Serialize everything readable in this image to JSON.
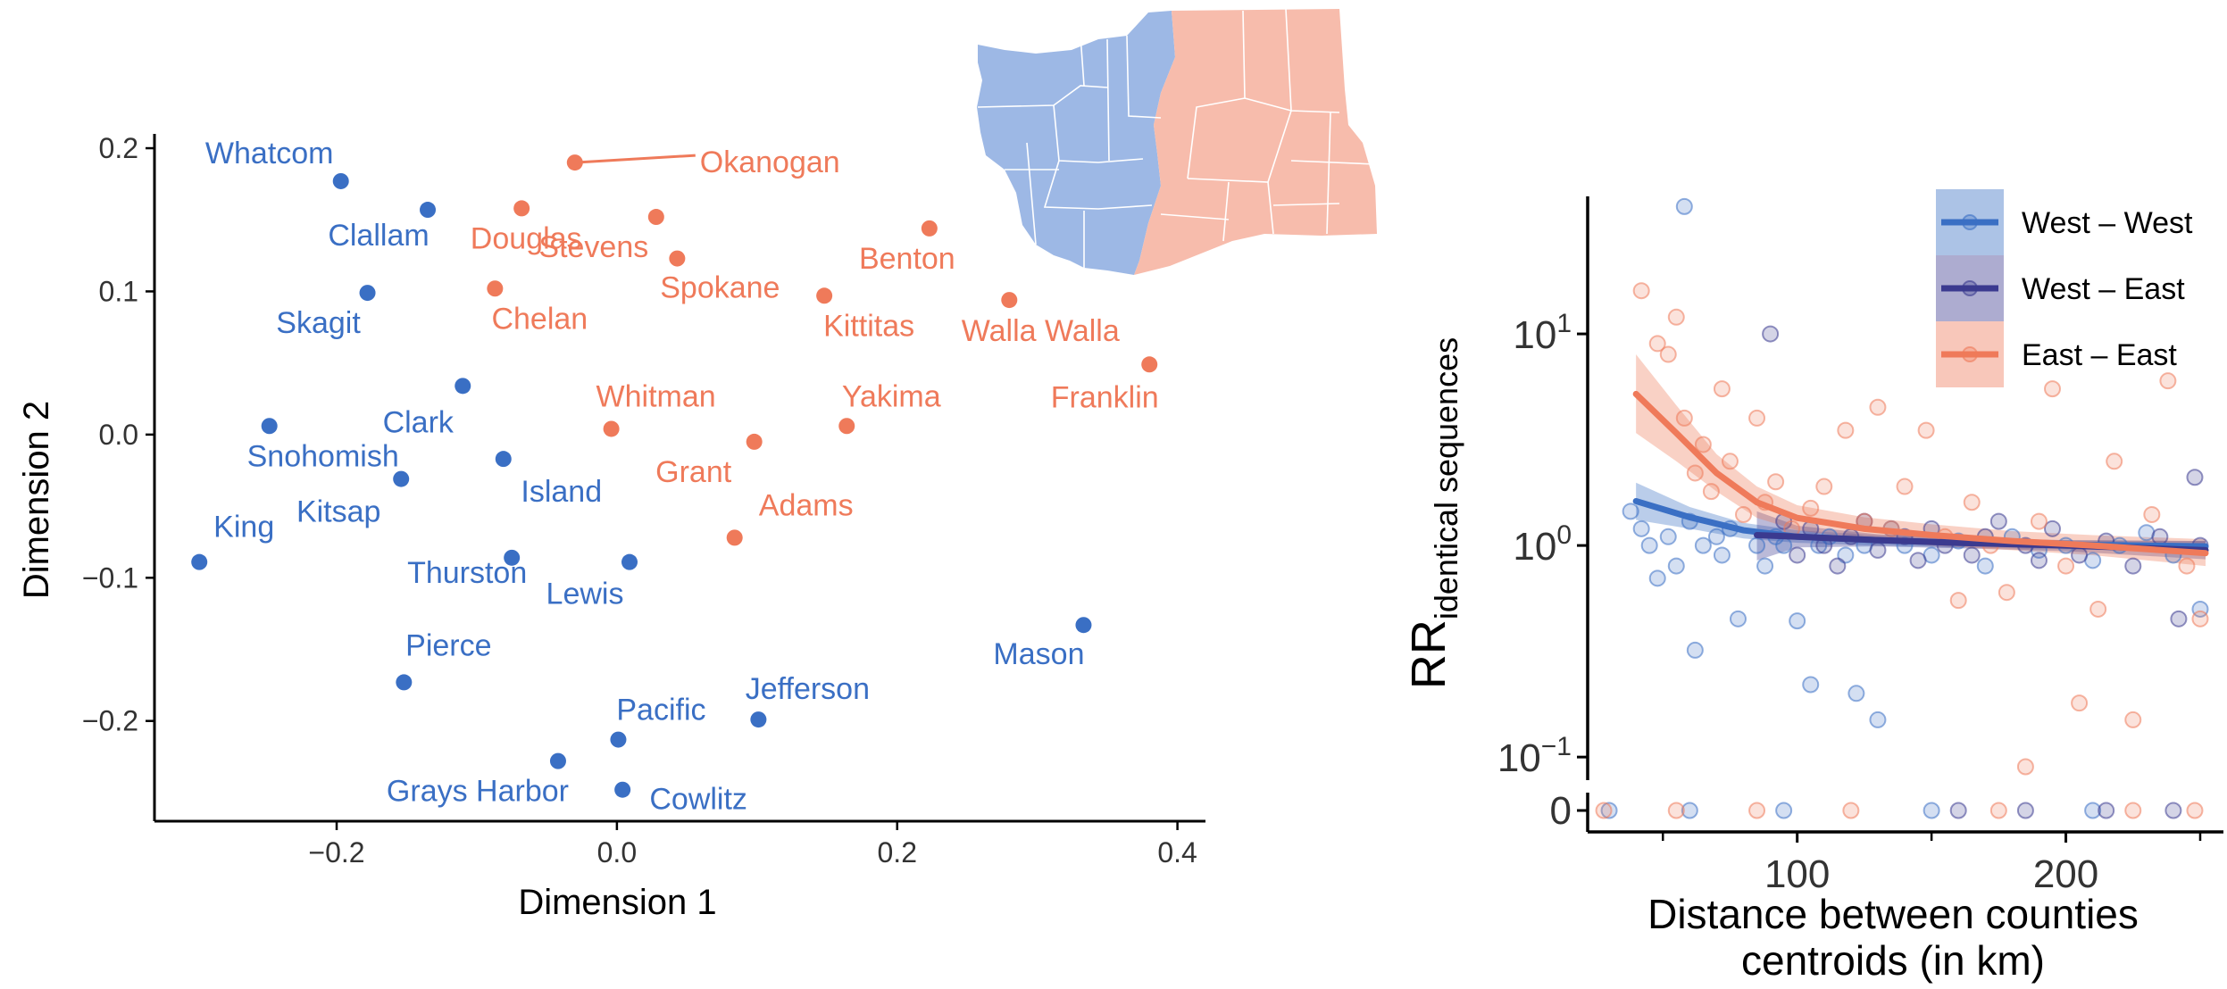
{
  "colors": {
    "west": "#3a6fc4",
    "east": "#ef7a5a",
    "west_east": "#3b3a8f",
    "map_west": "#9db8e5",
    "map_east": "#f7bcac",
    "axis": "#000000"
  },
  "chart_data": [
    {
      "type": "scatter",
      "xlabel": "Dimension 1",
      "ylabel": "Dimension 2",
      "xlim": [
        -0.33,
        0.42
      ],
      "ylim": [
        -0.27,
        0.21
      ],
      "x_ticks": [
        {
          "value": -0.2,
          "label": "−0.2"
        },
        {
          "value": 0.0,
          "label": "0.0"
        },
        {
          "value": 0.2,
          "label": "0.2"
        },
        {
          "value": 0.4,
          "label": "0.4"
        }
      ],
      "y_ticks": [
        {
          "value": 0.2,
          "label": "0.2"
        },
        {
          "value": 0.1,
          "label": "0.1"
        },
        {
          "value": 0.0,
          "label": "0.0"
        },
        {
          "value": -0.1,
          "label": "−0.1"
        },
        {
          "value": -0.2,
          "label": "−0.2"
        }
      ],
      "inset": "map of Washington state counties, west (blue) and east (salmon)",
      "points": [
        {
          "label": "Whatcom",
          "x": -0.197,
          "y": 0.177,
          "group": "west"
        },
        {
          "label": "Clallam",
          "x": -0.135,
          "y": 0.157,
          "group": "west"
        },
        {
          "label": "Skagit",
          "x": -0.178,
          "y": 0.099,
          "group": "west"
        },
        {
          "label": "Clark",
          "x": -0.11,
          "y": 0.034,
          "group": "west"
        },
        {
          "label": "Snohomish",
          "x": -0.248,
          "y": 0.006,
          "group": "west"
        },
        {
          "label": "Island",
          "x": -0.081,
          "y": -0.017,
          "group": "west"
        },
        {
          "label": "Kitsap",
          "x": -0.154,
          "y": -0.031,
          "group": "west"
        },
        {
          "label": "King",
          "x": -0.298,
          "y": -0.089,
          "group": "west"
        },
        {
          "label": "Thurston",
          "x": -0.075,
          "y": -0.086,
          "group": "west"
        },
        {
          "label": "Lewis",
          "x": 0.009,
          "y": -0.089,
          "group": "west"
        },
        {
          "label": "Pierce",
          "x": -0.152,
          "y": -0.173,
          "group": "west"
        },
        {
          "label": "Pacific",
          "x": 0.001,
          "y": -0.213,
          "group": "west"
        },
        {
          "label": "Jefferson",
          "x": 0.101,
          "y": -0.199,
          "group": "west"
        },
        {
          "label": "Grays Harbor",
          "x": -0.042,
          "y": -0.228,
          "group": "west"
        },
        {
          "label": "Cowlitz",
          "x": 0.004,
          "y": -0.248,
          "group": "west"
        },
        {
          "label": "Mason",
          "x": 0.333,
          "y": -0.133,
          "group": "west"
        },
        {
          "label": "Okanogan",
          "x": -0.03,
          "y": 0.19,
          "group": "east"
        },
        {
          "label": "Stevens",
          "x": 0.028,
          "y": 0.152,
          "group": "east"
        },
        {
          "label": "Douglas",
          "x": -0.068,
          "y": 0.158,
          "group": "east"
        },
        {
          "label": "Spokane",
          "x": 0.043,
          "y": 0.123,
          "group": "east"
        },
        {
          "label": "Benton",
          "x": 0.223,
          "y": 0.144,
          "group": "east"
        },
        {
          "label": "Chelan",
          "x": -0.087,
          "y": 0.102,
          "group": "east"
        },
        {
          "label": "Kittitas",
          "x": 0.148,
          "y": 0.097,
          "group": "east"
        },
        {
          "label": "Walla Walla",
          "x": 0.28,
          "y": 0.094,
          "group": "east"
        },
        {
          "label": "Franklin",
          "x": 0.38,
          "y": 0.049,
          "group": "east"
        },
        {
          "label": "Whitman",
          "x": -0.004,
          "y": 0.004,
          "group": "east"
        },
        {
          "label": "Yakima",
          "x": 0.164,
          "y": 0.006,
          "group": "east"
        },
        {
          "label": "Grant",
          "x": 0.098,
          "y": -0.005,
          "group": "east"
        },
        {
          "label": "Adams",
          "x": 0.084,
          "y": -0.072,
          "group": "east"
        }
      ]
    },
    {
      "type": "scatter",
      "xlabel": "Distance between counties centroids (in km)",
      "xlabel_lines": [
        "Distance between counties",
        "centroids (in km)"
      ],
      "ylabel_main": "RR",
      "ylabel_sub": "identical sequences",
      "y_scale": "log",
      "xlim": [
        22,
        252
      ],
      "ylim_log10": [
        -1.05,
        1.65
      ],
      "x_ticks": [
        {
          "value": 100,
          "label": "100"
        },
        {
          "value": 200,
          "label": "200"
        }
      ],
      "y_ticks": [
        {
          "exp": 1,
          "base": "10",
          "sup": "1"
        },
        {
          "exp": 0,
          "base": "10",
          "sup": "0"
        },
        {
          "exp": -1,
          "base": "10",
          "sup": "−1"
        }
      ],
      "zero_label": "0",
      "legend_position": "top-right",
      "legend": [
        {
          "label": "West – West",
          "group": "ww"
        },
        {
          "label": "West – East",
          "group": "we"
        },
        {
          "label": "East – East",
          "group": "ee"
        }
      ],
      "series": [
        {
          "name": "West – West",
          "group": "ww",
          "trend": [
            [
              40,
              1.62
            ],
            [
              60,
              1.36
            ],
            [
              80,
              1.18
            ],
            [
              100,
              1.1
            ],
            [
              130,
              1.06
            ],
            [
              160,
              1.03
            ],
            [
              200,
              1.01
            ],
            [
              252,
              0.99
            ]
          ],
          "band": [
            [
              40,
              1.32,
              1.98
            ],
            [
              60,
              1.2,
              1.52
            ],
            [
              80,
              1.08,
              1.28
            ],
            [
              100,
              1.03,
              1.18
            ],
            [
              130,
              1.0,
              1.12
            ],
            [
              160,
              0.98,
              1.08
            ],
            [
              200,
              0.96,
              1.06
            ],
            [
              252,
              0.93,
              1.05
            ]
          ],
          "points": [
            [
              38,
              1.45
            ],
            [
              42,
              1.2
            ],
            [
              45,
              1.0
            ],
            [
              48,
              0.7
            ],
            [
              52,
              1.1
            ],
            [
              55,
              0.8
            ],
            [
              58,
              40.0
            ],
            [
              60,
              1.3
            ],
            [
              62,
              0.32
            ],
            [
              65,
              1.0
            ],
            [
              70,
              1.1
            ],
            [
              72,
              0.9
            ],
            [
              75,
              1.2
            ],
            [
              78,
              0.45
            ],
            [
              85,
              1.0
            ],
            [
              88,
              0.8
            ],
            [
              92,
              1.1
            ],
            [
              95,
              1.0
            ],
            [
              100,
              0.44
            ],
            [
              105,
              0.22
            ],
            [
              108,
              1.0
            ],
            [
              112,
              1.1
            ],
            [
              118,
              0.9
            ],
            [
              122,
              0.2
            ],
            [
              125,
              1.0
            ],
            [
              130,
              0.15
            ],
            [
              135,
              1.2
            ],
            [
              140,
              1.0
            ],
            [
              150,
              0.9
            ],
            [
              160,
              1.05
            ],
            [
              170,
              0.8
            ],
            [
              180,
              1.1
            ],
            [
              190,
              0.95
            ],
            [
              200,
              1.0
            ],
            [
              210,
              0.85
            ],
            [
              220,
              1.0
            ],
            [
              230,
              1.15
            ],
            [
              240,
              0.9
            ],
            [
              250,
              0.5
            ],
            [
              30,
              0
            ],
            [
              60,
              0
            ],
            [
              95,
              0
            ],
            [
              150,
              0
            ],
            [
              210,
              0
            ]
          ]
        },
        {
          "name": "West – East",
          "group": "we",
          "trend": [
            [
              85,
              1.12
            ],
            [
              100,
              1.1
            ],
            [
              130,
              1.06
            ],
            [
              160,
              1.03
            ],
            [
              200,
              1.0
            ],
            [
              252,
              0.95
            ]
          ],
          "band": [
            [
              85,
              0.85,
              1.45
            ],
            [
              100,
              0.98,
              1.24
            ],
            [
              130,
              0.99,
              1.13
            ],
            [
              160,
              0.97,
              1.09
            ],
            [
              200,
              0.94,
              1.06
            ],
            [
              252,
              0.86,
              1.05
            ]
          ],
          "points": [
            [
              90,
              10.0
            ],
            [
              95,
              1.3
            ],
            [
              100,
              0.9
            ],
            [
              105,
              1.2
            ],
            [
              110,
              1.0
            ],
            [
              115,
              0.8
            ],
            [
              120,
              1.1
            ],
            [
              125,
              1.3
            ],
            [
              130,
              0.95
            ],
            [
              140,
              1.1
            ],
            [
              145,
              0.85
            ],
            [
              150,
              1.2
            ],
            [
              155,
              1.0
            ],
            [
              165,
              0.9
            ],
            [
              170,
              1.1
            ],
            [
              175,
              1.3
            ],
            [
              185,
              1.0
            ],
            [
              190,
              0.85
            ],
            [
              195,
              1.2
            ],
            [
              205,
              0.9
            ],
            [
              215,
              1.05
            ],
            [
              225,
              0.8
            ],
            [
              235,
              1.1
            ],
            [
              242,
              0.45
            ],
            [
              248,
              2.1
            ],
            [
              250,
              1.0
            ],
            [
              160,
              0
            ],
            [
              185,
              0
            ],
            [
              215,
              0
            ],
            [
              240,
              0
            ]
          ]
        },
        {
          "name": "East – East",
          "group": "ee",
          "trend": [
            [
              40,
              5.2
            ],
            [
              55,
              3.4
            ],
            [
              70,
              2.2
            ],
            [
              85,
              1.6
            ],
            [
              100,
              1.35
            ],
            [
              125,
              1.2
            ],
            [
              150,
              1.12
            ],
            [
              180,
              1.05
            ],
            [
              210,
              1.0
            ],
            [
              252,
              0.92
            ]
          ],
          "band": [
            [
              40,
              3.4,
              8.0
            ],
            [
              55,
              2.5,
              4.6
            ],
            [
              70,
              1.8,
              2.7
            ],
            [
              85,
              1.35,
              1.9
            ],
            [
              100,
              1.18,
              1.55
            ],
            [
              125,
              1.07,
              1.36
            ],
            [
              150,
              1.0,
              1.26
            ],
            [
              180,
              0.95,
              1.17
            ],
            [
              210,
              0.9,
              1.12
            ],
            [
              252,
              0.8,
              1.07
            ]
          ],
          "points": [
            [
              42,
              16.0
            ],
            [
              48,
              9.0
            ],
            [
              52,
              8.0
            ],
            [
              55,
              12.0
            ],
            [
              58,
              4.0
            ],
            [
              62,
              2.2
            ],
            [
              65,
              3.0
            ],
            [
              68,
              1.8
            ],
            [
              72,
              5.5
            ],
            [
              75,
              2.5
            ],
            [
              80,
              1.4
            ],
            [
              85,
              4.0
            ],
            [
              88,
              1.6
            ],
            [
              92,
              2.0
            ],
            [
              98,
              1.2
            ],
            [
              105,
              1.5
            ],
            [
              110,
              1.9
            ],
            [
              118,
              3.5
            ],
            [
              125,
              1.3
            ],
            [
              130,
              4.5
            ],
            [
              135,
              1.2
            ],
            [
              140,
              1.9
            ],
            [
              148,
              3.5
            ],
            [
              155,
              1.1
            ],
            [
              160,
              0.55
            ],
            [
              165,
              1.6
            ],
            [
              172,
              1.0
            ],
            [
              178,
              0.6
            ],
            [
              185,
              0.09
            ],
            [
              190,
              1.3
            ],
            [
              195,
              5.5
            ],
            [
              200,
              0.8
            ],
            [
              205,
              0.18
            ],
            [
              212,
              0.5
            ],
            [
              218,
              2.5
            ],
            [
              225,
              0.15
            ],
            [
              232,
              1.4
            ],
            [
              238,
              6.0
            ],
            [
              245,
              0.8
            ],
            [
              250,
              0.45
            ],
            [
              28,
              0
            ],
            [
              55,
              0
            ],
            [
              85,
              0
            ],
            [
              120,
              0
            ],
            [
              175,
              0
            ],
            [
              225,
              0
            ],
            [
              248,
              0
            ]
          ]
        }
      ]
    }
  ]
}
